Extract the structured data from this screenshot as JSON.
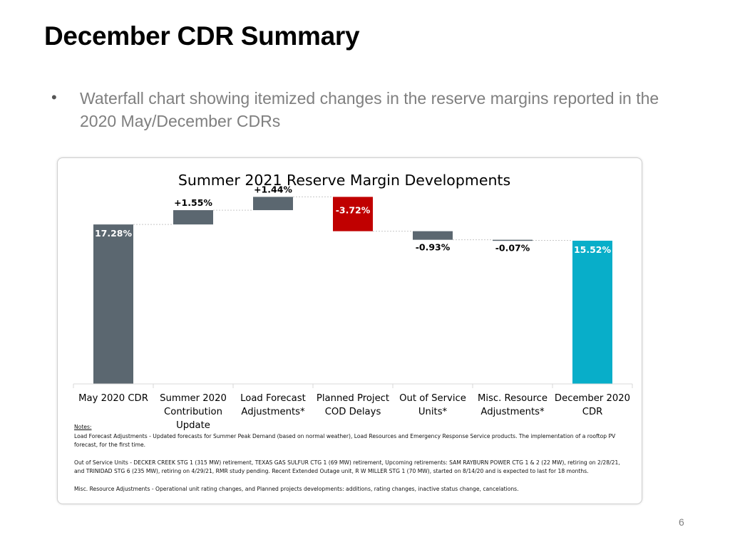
{
  "slide": {
    "title": "December CDR Summary",
    "bullet": "Waterfall chart showing itemized changes in the reserve margins reported in the 2020 May/December CDRs",
    "page_number": "6"
  },
  "colors": {
    "total_gray": "#5b6770",
    "increase_gray": "#5b6770",
    "decrease_red": "#c00000",
    "final_teal": "#08aec9"
  },
  "chart_data": {
    "type": "waterfall",
    "title": "Summer 2021 Reserve Margin Developments",
    "unit": "%",
    "ylim": [
      0,
      22
    ],
    "grid": false,
    "legend": "none",
    "categories": [
      [
        "May 2020 CDR"
      ],
      [
        "Summer 2020",
        "Contribution",
        "Update"
      ],
      [
        "Load Forecast",
        "Adjustments*"
      ],
      [
        "Planned Project",
        "COD Delays"
      ],
      [
        "Out of Service",
        "Units*"
      ],
      [
        "Misc. Resource",
        "Adjustments*"
      ],
      [
        "December 2020",
        "CDR"
      ]
    ],
    "steps": [
      {
        "kind": "total",
        "value": 17.28,
        "label": "17.28%"
      },
      {
        "kind": "delta",
        "value": 1.55,
        "label": "+1.55%"
      },
      {
        "kind": "delta",
        "value": 1.44,
        "label": "+1.44%"
      },
      {
        "kind": "delta",
        "value": -3.72,
        "label": "-3.72%"
      },
      {
        "kind": "delta",
        "value": -0.93,
        "label": "-0.93%"
      },
      {
        "kind": "delta",
        "value": -0.07,
        "label": "-0.07%"
      },
      {
        "kind": "total",
        "value": 15.52,
        "label": "15.52%"
      }
    ]
  },
  "notes": {
    "heading": "Notes:",
    "load_forecast": "Load Forecast Adjustments - Updated forecasts for Summer Peak Demand (based on normal weather), Load Resources and Emergency Response Service products. The implementation of a rooftop PV forecast, for the first time.",
    "out_of_service": "Out of Service Units - DECKER CREEK STG 1 (315 MW) retirement, TEXAS GAS SULFUR CTG 1 (69 MW) retirement, Upcoming retirements: SAM RAYBURN POWER CTG 1 & 2 (22 MW), retiring on 2/28/21, and TRINIDAD STG 6 (235 MW), retiring on 4/29/21, RMR study pending. Recent Extended Outage unit, R W MILLER STG 1 (70 MW), started on 8/14/20 and is expected to last for 18 months.",
    "misc": "Misc. Resource Adjustments - Operational unit rating changes, and Planned projects developments: additions, rating changes, inactive status change, cancelations."
  }
}
